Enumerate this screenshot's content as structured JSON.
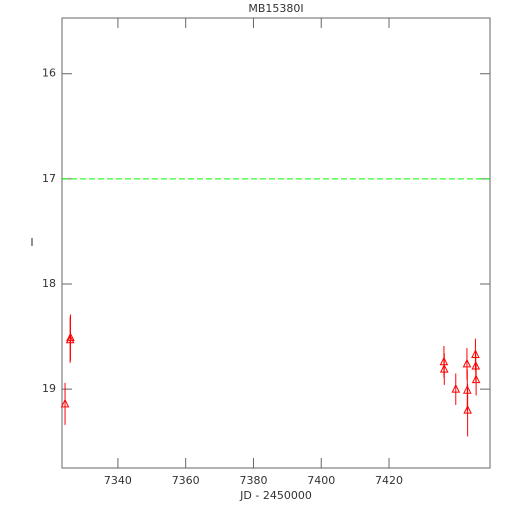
{
  "chart_data": {
    "type": "scatter",
    "title": "MB15380I",
    "x_label": "JD - 2450000",
    "y_label": "I",
    "series": [
      {
        "name": "I",
        "color": "#ff0000",
        "x": [
          7324.4,
          7325.9,
          7326.0,
          7436.2,
          7436.3,
          7439.7,
          7443.0,
          7443.1,
          7443.2,
          7445.5,
          7445.6,
          7445.7
        ],
        "values": [
          19.14,
          18.53,
          18.51,
          18.74,
          18.81,
          19.0,
          18.76,
          19.01,
          19.2,
          18.67,
          18.78,
          18.91
        ],
        "errors": [
          0.2,
          0.22,
          0.22,
          0.15,
          0.15,
          0.15,
          0.15,
          0.2,
          0.25,
          0.15,
          0.15,
          0.15
        ]
      }
    ],
    "reference_line": {
      "value": 17,
      "color": "#00ff00"
    },
    "xlim": [
      7323.5,
      7449.8
    ],
    "ylim": [
      15.47,
      19.75
    ],
    "y_reversed": true,
    "xticks": [
      7340,
      7360,
      7380,
      7400,
      7420
    ],
    "yticks": [
      16,
      17,
      18,
      19
    ]
  }
}
